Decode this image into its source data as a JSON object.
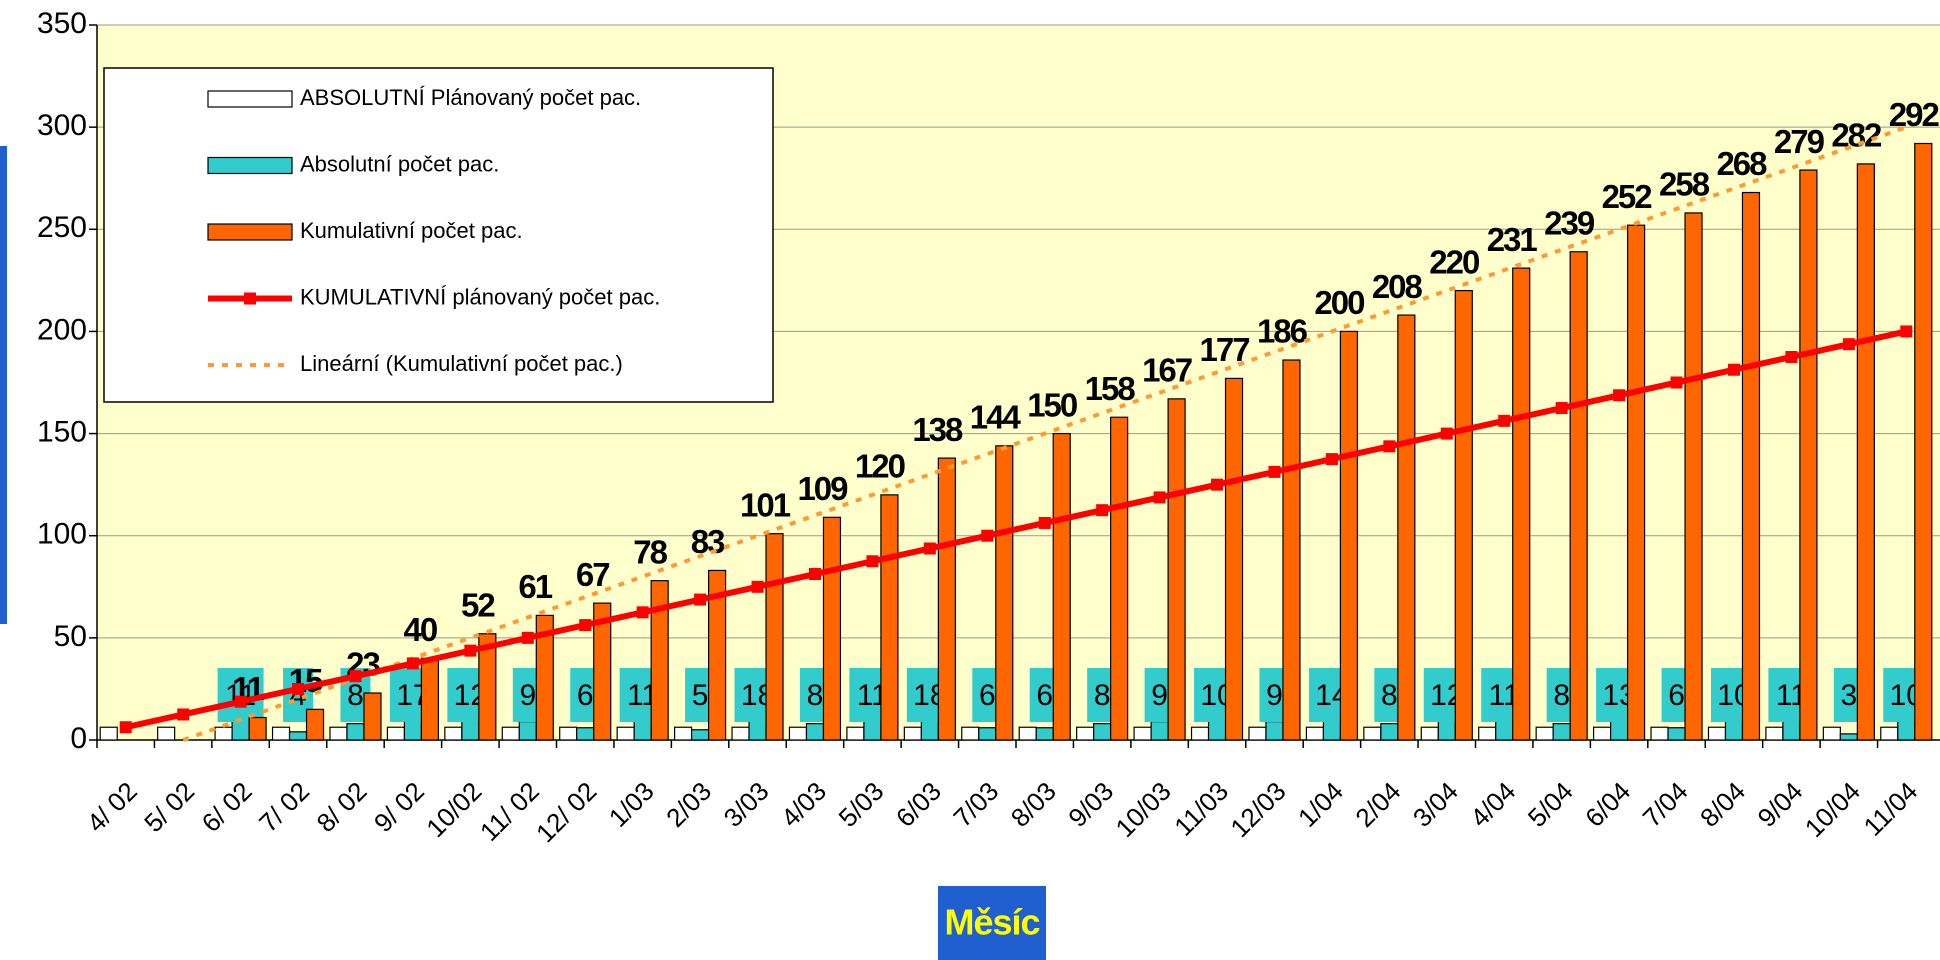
{
  "chart_data": {
    "type": "bar",
    "x_label": "Měsíc",
    "categories": [
      "4/ 02",
      "5/ 02",
      "6/ 02",
      "7/ 02",
      "8/ 02",
      "9/ 02",
      "10/02",
      "11/ 02",
      "12/ 02",
      "1/03",
      "2/03",
      "3/03",
      "4/03",
      "5/03",
      "6/03",
      "7/03",
      "8/03",
      "9/03",
      "10/03",
      "11/03",
      "12/03",
      "1/04",
      "2/04",
      "3/04",
      "4/04",
      "5/04",
      "6/04",
      "7/04",
      "8/04",
      "9/04",
      "10/04",
      "11/04"
    ],
    "series": [
      {
        "name": "ABSOLUTNÍ Plánovaný počet pac.",
        "type": "bar",
        "color": "#ffffff",
        "values": [
          6.25,
          6.25,
          6.25,
          6.25,
          6.25,
          6.25,
          6.25,
          6.25,
          6.25,
          6.25,
          6.25,
          6.25,
          6.25,
          6.25,
          6.25,
          6.25,
          6.25,
          6.25,
          6.25,
          6.25,
          6.25,
          6.25,
          6.25,
          6.25,
          6.25,
          6.25,
          6.25,
          6.25,
          6.25,
          6.25,
          6.25,
          6.25
        ]
      },
      {
        "name": "Absolutní počet pac.",
        "type": "bar",
        "color": "#33cccc",
        "values": [
          null,
          null,
          11,
          4,
          8,
          17,
          12,
          9,
          6,
          11,
          5,
          18,
          8,
          11,
          18,
          6,
          6,
          8,
          9,
          10,
          9,
          14,
          8,
          12,
          11,
          8,
          13,
          6,
          10,
          11,
          3,
          10
        ]
      },
      {
        "name": "Kumulativní počet pac.",
        "type": "bar",
        "color": "#ff6600",
        "values": [
          null,
          null,
          11,
          15,
          23,
          40,
          52,
          61,
          67,
          78,
          83,
          101,
          109,
          120,
          138,
          144,
          150,
          158,
          167,
          177,
          186,
          200,
          208,
          220,
          231,
          239,
          252,
          258,
          268,
          279,
          282,
          292
        ]
      },
      {
        "name": "KUMULATIVNÍ plánovaný počet pac.",
        "type": "line",
        "color": "#ff0000",
        "values": [
          6.25,
          12.5,
          18.75,
          25,
          31.25,
          37.5,
          43.75,
          50,
          56.25,
          62.5,
          68.75,
          75,
          81.25,
          87.5,
          93.75,
          100,
          106.25,
          112.5,
          118.75,
          125,
          131.25,
          137.5,
          143.75,
          150,
          156.25,
          162.5,
          168.75,
          175,
          181.25,
          187.5,
          193.75,
          200
        ]
      },
      {
        "name": "Lineární (Kumulativní počet pac.)",
        "type": "trend",
        "color": "#ff9933",
        "values": [
          null,
          0,
          10,
          20,
          30,
          40,
          50,
          60,
          70,
          80,
          90,
          100,
          110,
          120,
          130,
          140,
          150,
          160,
          170,
          180,
          190,
          200,
          210,
          220,
          230,
          240,
          250,
          260,
          270,
          280,
          290,
          300
        ]
      }
    ],
    "ylim": [
      0,
      350
    ],
    "yticks": [
      0,
      50,
      100,
      150,
      200,
      250,
      300,
      350
    ],
    "grid": true
  }
}
